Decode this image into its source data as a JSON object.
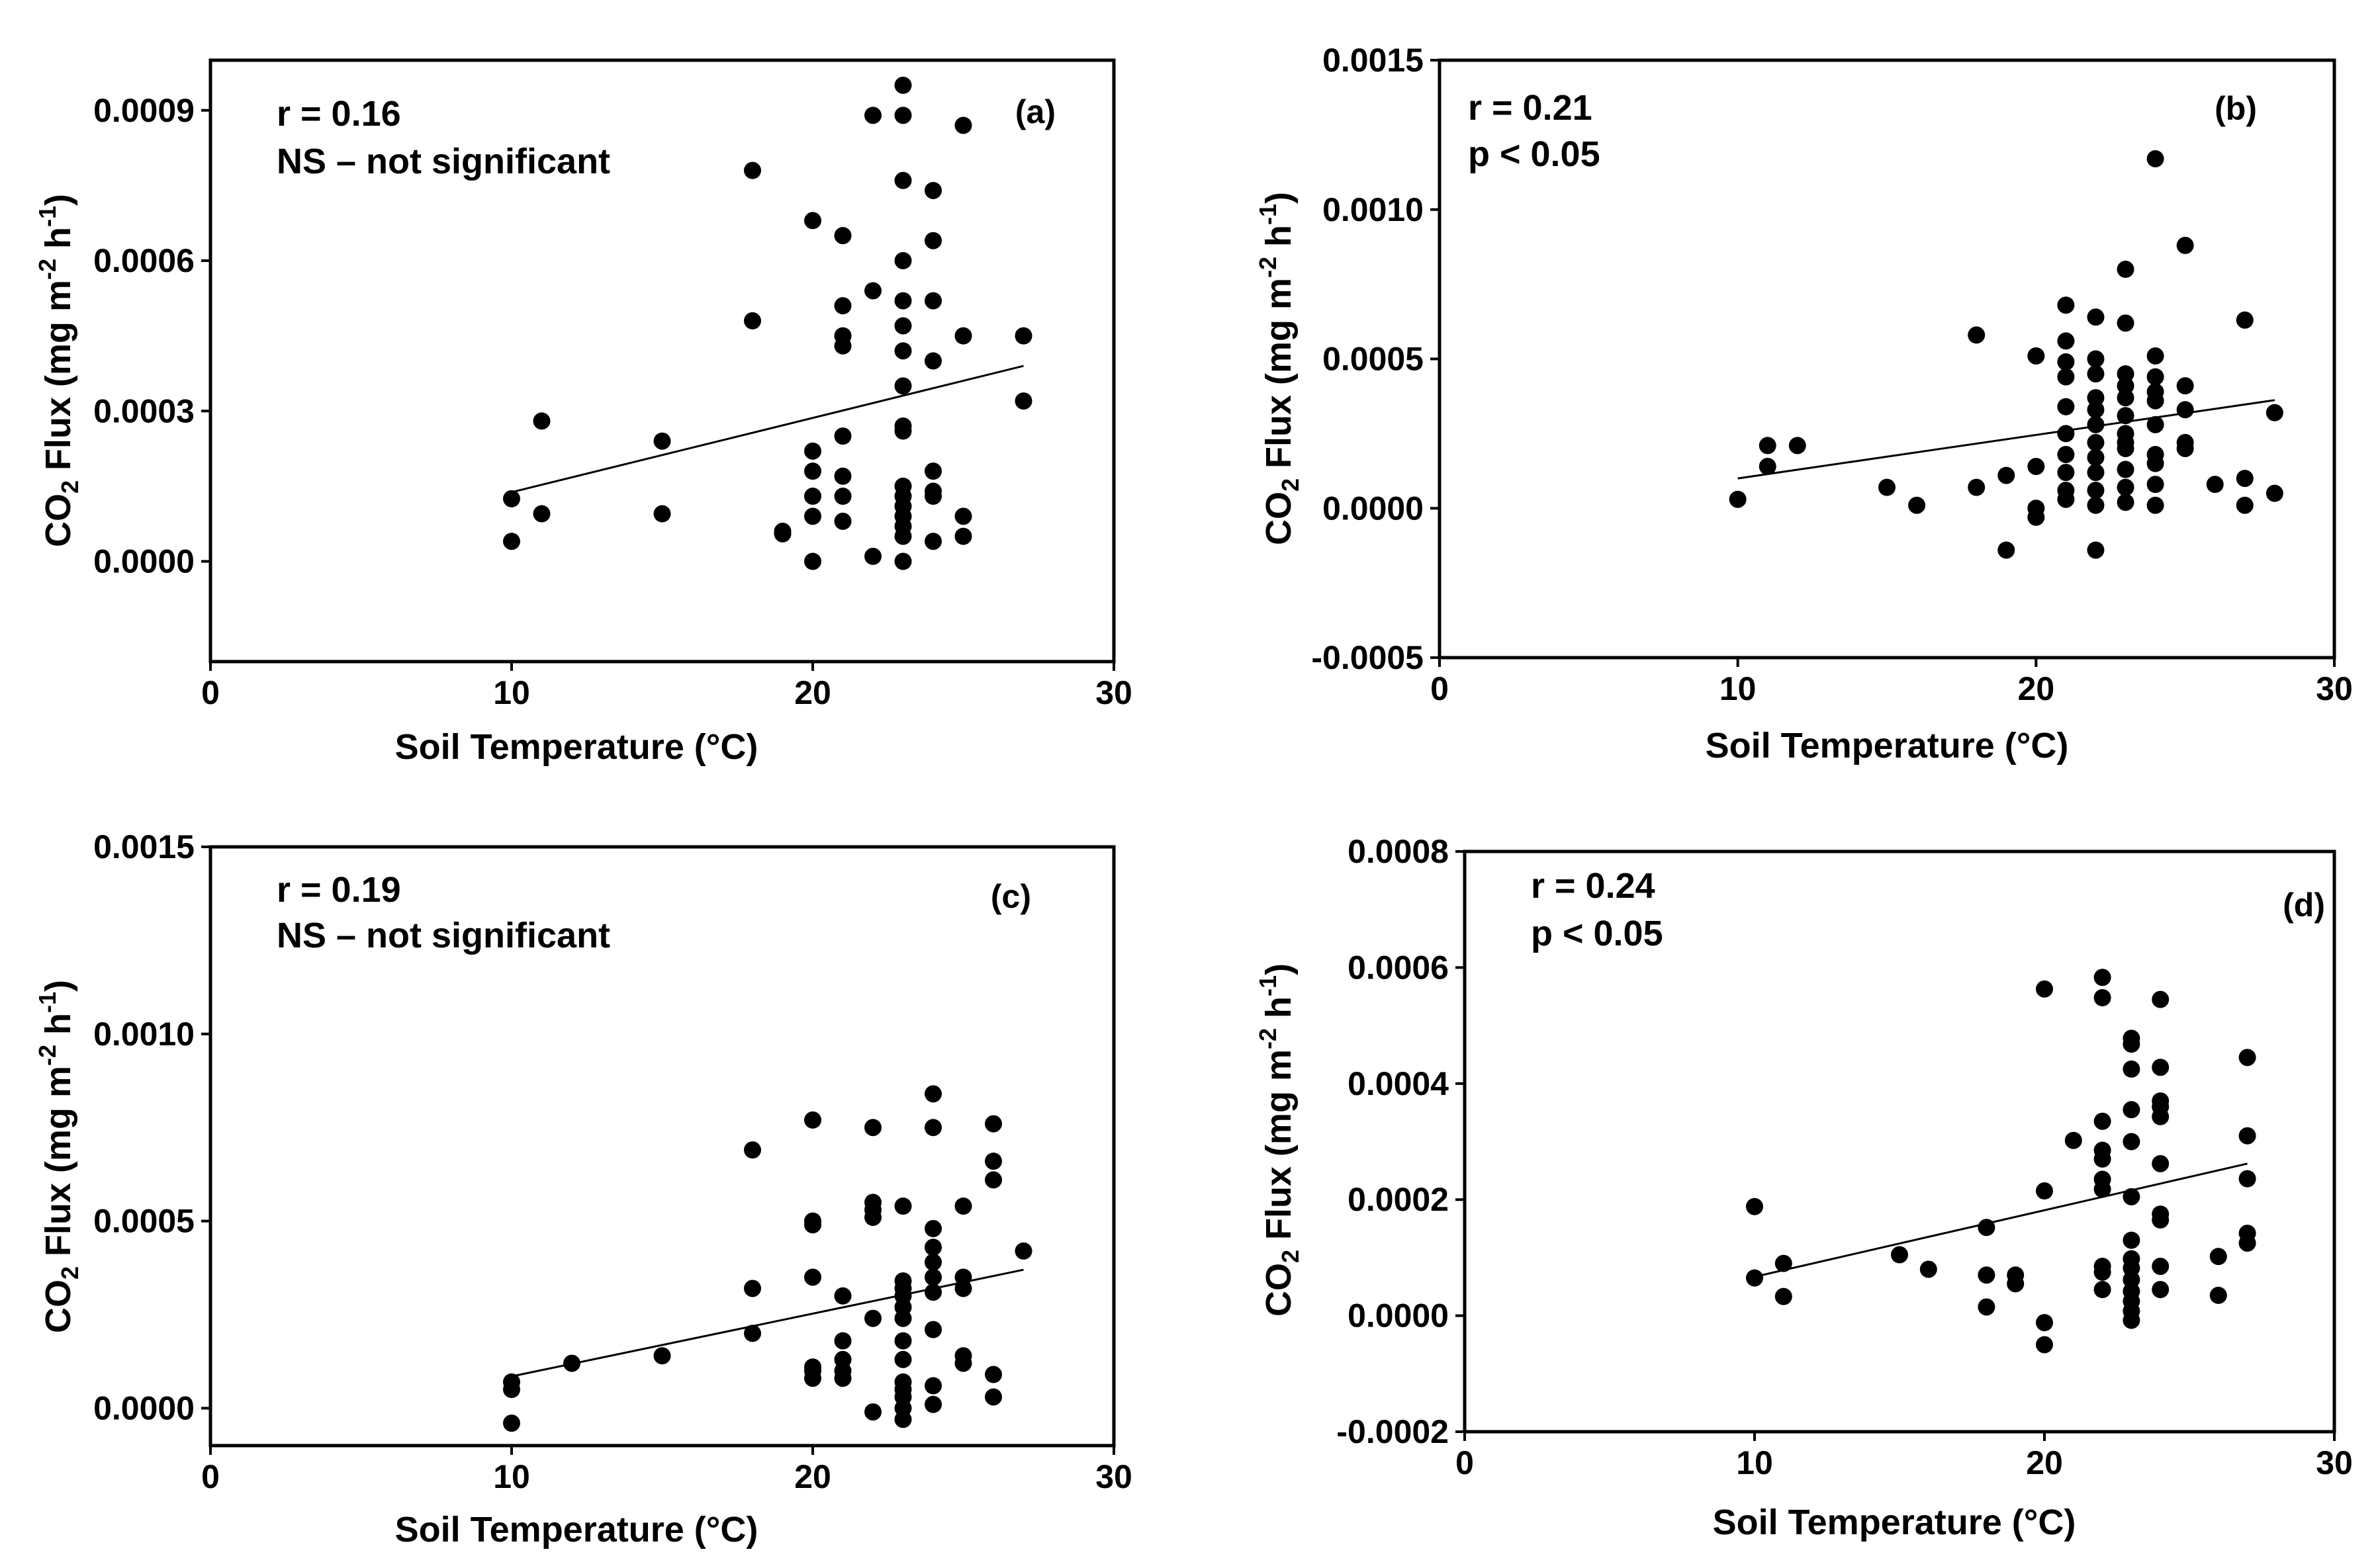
{
  "figure": {
    "panels": [
      "a",
      "b",
      "c",
      "d"
    ]
  },
  "chart_data": [
    {
      "type": "scatter",
      "panel_label": "(a)",
      "stat_r": "r = 0.16",
      "stat_sig": "NS – not significant",
      "xlabel": "Soil Temperature  (°C)",
      "ylabel": {
        "pre": "CO",
        "sub": "2",
        "mid": " Flux (mg m",
        "sup1": "-2",
        "mid2": " h",
        "sup2": "-1",
        "post": ")"
      },
      "xlim": [
        0,
        30
      ],
      "ylim": [
        -0.0002,
        0.001
      ],
      "xticks": [
        0,
        10,
        20,
        30
      ],
      "xtick_labels": [
        "0",
        "10",
        "20",
        "30"
      ],
      "yticks": [
        0.0,
        0.0003,
        0.0006,
        0.0009
      ],
      "ytick_labels": [
        "0.0000",
        "0.0003",
        "0.0006",
        "0.0009"
      ],
      "trendline": {
        "x": [
          10,
          27
        ],
        "y": [
          0.000138,
          0.00039
        ]
      },
      "points": [
        [
          10,
          4e-05
        ],
        [
          10,
          0.000125
        ],
        [
          11,
          9.5e-05
        ],
        [
          11,
          0.00028
        ],
        [
          15,
          9.5e-05
        ],
        [
          15,
          0.00024
        ],
        [
          18,
          0.00048
        ],
        [
          18,
          0.00078
        ],
        [
          19,
          5.5e-05
        ],
        [
          19,
          6e-05
        ],
        [
          20,
          0.0
        ],
        [
          20,
          9e-05
        ],
        [
          20,
          0.00013
        ],
        [
          20,
          0.00018
        ],
        [
          20,
          0.00022
        ],
        [
          20,
          0.00068
        ],
        [
          21,
          8e-05
        ],
        [
          21,
          0.00013
        ],
        [
          21,
          0.00017
        ],
        [
          21,
          0.00025
        ],
        [
          21,
          0.00043
        ],
        [
          21,
          0.00045
        ],
        [
          21,
          0.00051
        ],
        [
          21,
          0.00065
        ],
        [
          22,
          1e-05
        ],
        [
          22,
          0.00054
        ],
        [
          22,
          0.00089
        ],
        [
          23,
          0.0
        ],
        [
          23,
          5e-05
        ],
        [
          23,
          7e-05
        ],
        [
          23,
          9e-05
        ],
        [
          23,
          0.00011
        ],
        [
          23,
          0.00013
        ],
        [
          23,
          0.00015
        ],
        [
          23,
          0.00026
        ],
        [
          23,
          0.00027
        ],
        [
          23,
          0.00035
        ],
        [
          23,
          0.00042
        ],
        [
          23,
          0.00047
        ],
        [
          23,
          0.00052
        ],
        [
          23,
          0.0006
        ],
        [
          23,
          0.00076
        ],
        [
          23,
          0.00089
        ],
        [
          23,
          0.00095
        ],
        [
          24,
          4e-05
        ],
        [
          24,
          0.00013
        ],
        [
          24,
          0.00014
        ],
        [
          24,
          0.00018
        ],
        [
          24,
          0.0004
        ],
        [
          24,
          0.00052
        ],
        [
          24,
          0.00064
        ],
        [
          24,
          0.00074
        ],
        [
          25,
          5e-05
        ],
        [
          25,
          9e-05
        ],
        [
          25,
          0.00045
        ],
        [
          25,
          0.00087
        ],
        [
          27,
          0.00032
        ],
        [
          27,
          0.00045
        ]
      ]
    },
    {
      "type": "scatter",
      "panel_label": "(b)",
      "stat_r": "r = 0.21",
      "stat_sig": "p < 0.05",
      "xlabel": "Soil Temperature (°C)",
      "ylabel": {
        "pre": "CO",
        "sub": "2",
        "mid": " Flux (mg m",
        "sup1": "-2",
        "mid2": " h",
        "sup2": "-1",
        "post": ")"
      },
      "xlim": [
        0,
        30
      ],
      "ylim": [
        -0.0005,
        0.0015
      ],
      "xticks": [
        0,
        10,
        20,
        30
      ],
      "xtick_labels": [
        "0",
        "10",
        "20",
        "30"
      ],
      "yticks": [
        -0.0005,
        0.0,
        0.0005,
        0.001,
        0.0015
      ],
      "ytick_labels": [
        "-0.0005",
        "0.0000",
        "0.0005",
        "0.0010",
        "0.0015"
      ],
      "trendline": {
        "x": [
          10,
          28
        ],
        "y": [
          0.0001,
          0.000362
        ]
      },
      "points": [
        [
          10,
          3e-05
        ],
        [
          11,
          0.00014
        ],
        [
          11,
          0.00021
        ],
        [
          12,
          0.00021
        ],
        [
          15,
          7e-05
        ],
        [
          16,
          1e-05
        ],
        [
          18,
          7e-05
        ],
        [
          18,
          0.00058
        ],
        [
          19,
          -0.00014
        ],
        [
          19,
          0.00011
        ],
        [
          20,
          -3e-05
        ],
        [
          20,
          0.0
        ],
        [
          20,
          0.00014
        ],
        [
          20,
          0.00051
        ],
        [
          21,
          3e-05
        ],
        [
          21,
          6e-05
        ],
        [
          21,
          0.00012
        ],
        [
          21,
          0.00018
        ],
        [
          21,
          0.00025
        ],
        [
          21,
          0.00034
        ],
        [
          21,
          0.00044
        ],
        [
          21,
          0.00049
        ],
        [
          21,
          0.00056
        ],
        [
          21,
          0.00068
        ],
        [
          22,
          -0.00014
        ],
        [
          22,
          1e-05
        ],
        [
          22,
          6e-05
        ],
        [
          22,
          0.00012
        ],
        [
          22,
          0.00017
        ],
        [
          22,
          0.00022
        ],
        [
          22,
          0.00028
        ],
        [
          22,
          0.00033
        ],
        [
          22,
          0.00037
        ],
        [
          22,
          0.00045
        ],
        [
          22,
          0.0005
        ],
        [
          22,
          0.00064
        ],
        [
          23,
          2e-05
        ],
        [
          23,
          7e-05
        ],
        [
          23,
          0.00013
        ],
        [
          23,
          0.0002
        ],
        [
          23,
          0.00022
        ],
        [
          23,
          0.00025
        ],
        [
          23,
          0.00031
        ],
        [
          23,
          0.00037
        ],
        [
          23,
          0.00041
        ],
        [
          23,
          0.00045
        ],
        [
          23,
          0.00062
        ],
        [
          23,
          0.0008
        ],
        [
          24,
          1e-05
        ],
        [
          24,
          8e-05
        ],
        [
          24,
          0.00015
        ],
        [
          24,
          0.00018
        ],
        [
          24,
          0.00028
        ],
        [
          24,
          0.00036
        ],
        [
          24,
          0.00039
        ],
        [
          24,
          0.00044
        ],
        [
          24,
          0.00051
        ],
        [
          24,
          0.00117
        ],
        [
          25,
          0.0002
        ],
        [
          25,
          0.00022
        ],
        [
          25,
          0.00033
        ],
        [
          25,
          0.00041
        ],
        [
          25,
          0.00088
        ],
        [
          26,
          8e-05
        ],
        [
          27,
          1e-05
        ],
        [
          27,
          0.0001
        ],
        [
          27,
          0.00063
        ],
        [
          28,
          5e-05
        ],
        [
          28,
          0.00032
        ]
      ]
    },
    {
      "type": "scatter",
      "panel_label": "(c)",
      "stat_r": "r = 0.19",
      "stat_sig": "NS – not significant",
      "xlabel": "Soil Temperature (°C)",
      "ylabel": {
        "pre": "CO",
        "sub": "2",
        "mid": " Flux (mg m",
        "sup1": "-2",
        "mid2": " h",
        "sup2": "-1",
        "post": ")"
      },
      "xlim": [
        0,
        30
      ],
      "ylim": [
        -0.0001,
        0.0015
      ],
      "xticks": [
        0,
        10,
        20,
        30
      ],
      "xtick_labels": [
        "0",
        "10",
        "20",
        "30"
      ],
      "yticks": [
        0.0,
        0.0005,
        0.001,
        0.0015
      ],
      "ytick_labels": [
        "0.0000",
        "0.0005",
        "0.0010",
        "0.0015"
      ],
      "trendline": {
        "x": [
          10,
          27
        ],
        "y": [
          8.5e-05,
          0.00037
        ]
      },
      "points": [
        [
          10,
          -4e-05
        ],
        [
          10,
          5e-05
        ],
        [
          10,
          7e-05
        ],
        [
          12,
          0.00012
        ],
        [
          15,
          0.00014
        ],
        [
          18,
          0.0002
        ],
        [
          18,
          0.00032
        ],
        [
          18,
          0.00069
        ],
        [
          20,
          8e-05
        ],
        [
          20,
          0.0001
        ],
        [
          20,
          0.00011
        ],
        [
          20,
          0.00035
        ],
        [
          20,
          0.00049
        ],
        [
          20,
          0.0005
        ],
        [
          20,
          0.00077
        ],
        [
          21,
          8e-05
        ],
        [
          21,
          0.0001
        ],
        [
          21,
          0.00013
        ],
        [
          21,
          0.00018
        ],
        [
          21,
          0.0003
        ],
        [
          22,
          -1e-05
        ],
        [
          22,
          0.00024
        ],
        [
          22,
          0.00051
        ],
        [
          22,
          0.00053
        ],
        [
          22,
          0.00055
        ],
        [
          22,
          0.00075
        ],
        [
          23,
          -3e-05
        ],
        [
          23,
          0.0
        ],
        [
          23,
          3e-05
        ],
        [
          23,
          5e-05
        ],
        [
          23,
          7e-05
        ],
        [
          23,
          0.00013
        ],
        [
          23,
          0.00018
        ],
        [
          23,
          0.00024
        ],
        [
          23,
          0.00027
        ],
        [
          23,
          0.0003
        ],
        [
          23,
          0.00032
        ],
        [
          23,
          0.00034
        ],
        [
          23,
          0.00054
        ],
        [
          24,
          1e-05
        ],
        [
          24,
          6e-05
        ],
        [
          24,
          0.00021
        ],
        [
          24,
          0.00031
        ],
        [
          24,
          0.00035
        ],
        [
          24,
          0.00039
        ],
        [
          24,
          0.00043
        ],
        [
          24,
          0.00048
        ],
        [
          24,
          0.00075
        ],
        [
          24,
          0.00084
        ],
        [
          25,
          0.00012
        ],
        [
          25,
          0.00014
        ],
        [
          25,
          0.00032
        ],
        [
          25,
          0.00035
        ],
        [
          25,
          0.00054
        ],
        [
          26,
          3e-05
        ],
        [
          26,
          9e-05
        ],
        [
          26,
          0.00061
        ],
        [
          26,
          0.00066
        ],
        [
          26,
          0.00076
        ],
        [
          27,
          0.00042
        ]
      ]
    },
    {
      "type": "scatter",
      "panel_label": "(d)",
      "stat_r": "r = 0.24",
      "stat_sig": "p < 0.05",
      "xlabel": "Soil Temperature (°C)",
      "ylabel": {
        "pre": "CO",
        "sub": "2",
        "mid": " Flux (mg m",
        "sup1": "-2",
        "mid2": " h",
        "sup2": "-1",
        "post": ")"
      },
      "xlim": [
        0,
        30
      ],
      "ylim": [
        -0.0002,
        0.0008
      ],
      "xticks": [
        0,
        10,
        20,
        30
      ],
      "xtick_labels": [
        "0",
        "10",
        "20",
        "30"
      ],
      "yticks": [
        -0.0002,
        0.0,
        0.0002,
        0.0004,
        0.0006,
        0.0008
      ],
      "ytick_labels": [
        "-0.0002",
        "0.0000",
        "0.0002",
        "0.0004",
        "0.0006",
        "0.0008"
      ],
      "trendline": {
        "x": [
          10,
          27
        ],
        "y": [
          6.7e-05,
          0.000262
        ]
      },
      "points": [
        [
          10,
          6.5e-05
        ],
        [
          10,
          0.000188
        ],
        [
          11,
          3.3e-05
        ],
        [
          11,
          9e-05
        ],
        [
          15,
          0.000105
        ],
        [
          16,
          8e-05
        ],
        [
          18,
          1.5e-05
        ],
        [
          18,
          7e-05
        ],
        [
          18,
          0.000152
        ],
        [
          19,
          5.5e-05
        ],
        [
          19,
          7e-05
        ],
        [
          20,
          -5e-05
        ],
        [
          20,
          -1.2e-05
        ],
        [
          20,
          0.000215
        ],
        [
          20,
          0.000563
        ],
        [
          21,
          0.000302
        ],
        [
          22,
          4.5e-05
        ],
        [
          22,
          7.5e-05
        ],
        [
          22,
          8.5e-05
        ],
        [
          22,
          0.000218
        ],
        [
          22,
          0.000235
        ],
        [
          22,
          0.00027
        ],
        [
          22,
          0.000285
        ],
        [
          22,
          0.000335
        ],
        [
          22,
          0.000548
        ],
        [
          22,
          0.000583
        ],
        [
          23,
          -8e-06
        ],
        [
          23,
          8e-06
        ],
        [
          23,
          2.5e-05
        ],
        [
          23,
          4.2e-05
        ],
        [
          23,
          6.2e-05
        ],
        [
          23,
          8.2e-05
        ],
        [
          23,
          9.8e-05
        ],
        [
          23,
          0.00013
        ],
        [
          23,
          0.000205
        ],
        [
          23,
          0.0003
        ],
        [
          23,
          0.000355
        ],
        [
          23,
          0.000425
        ],
        [
          23,
          0.000468
        ],
        [
          23,
          0.000478
        ],
        [
          24,
          4.5e-05
        ],
        [
          24,
          8.5e-05
        ],
        [
          24,
          0.000165
        ],
        [
          24,
          0.000175
        ],
        [
          24,
          0.000262
        ],
        [
          24,
          0.000343
        ],
        [
          24,
          0.00036
        ],
        [
          24,
          0.00037
        ],
        [
          24,
          0.000428
        ],
        [
          24,
          0.000545
        ],
        [
          26,
          3.5e-05
        ],
        [
          26,
          0.000102
        ],
        [
          27,
          0.000125
        ],
        [
          27,
          0.000142
        ],
        [
          27,
          0.000236
        ],
        [
          27,
          0.00031
        ],
        [
          27,
          0.000445
        ]
      ]
    }
  ]
}
